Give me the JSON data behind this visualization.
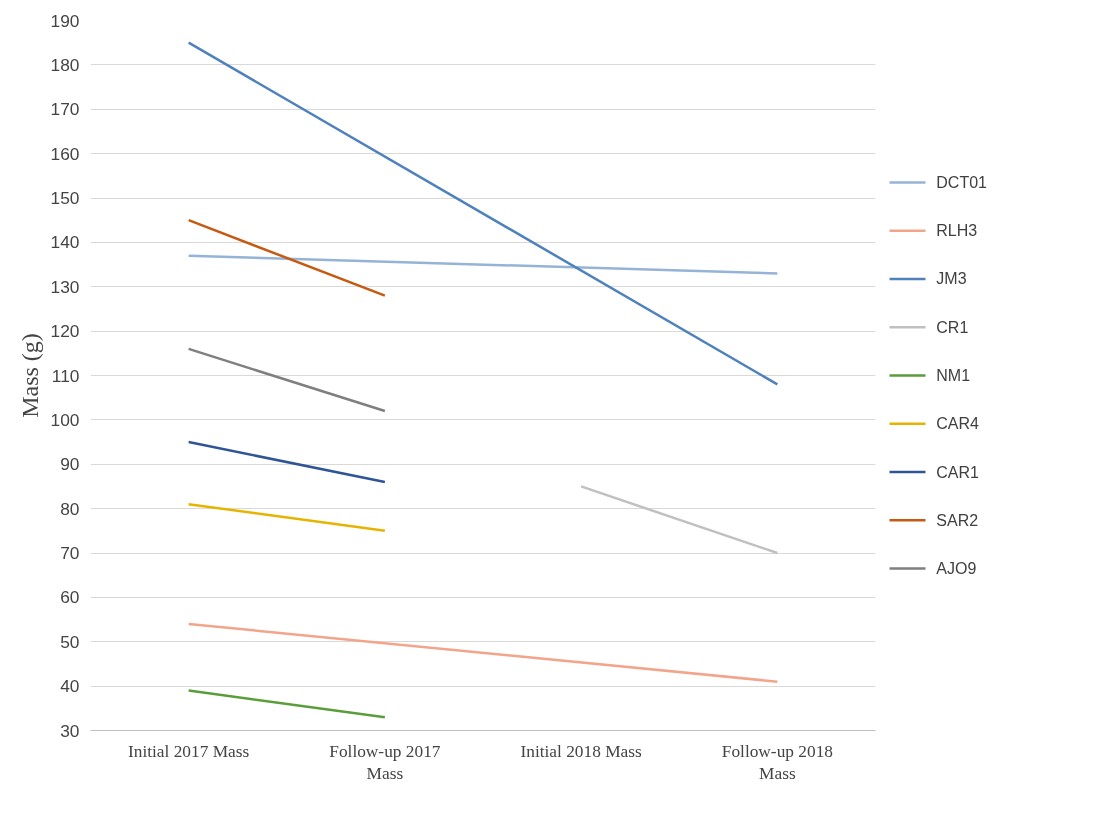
{
  "chart_data": {
    "type": "line",
    "ylabel": "Mass (g)",
    "categories": [
      "Initial 2017 Mass",
      "Follow-up 2017 Mass",
      "Initial 2018 Mass",
      "Follow-up 2018 Mass"
    ],
    "series": [
      {
        "name": "DCT01",
        "color": "#95b3d7",
        "values": [
          137,
          null,
          null,
          133
        ]
      },
      {
        "name": "RLH3",
        "color": "#f2a58a",
        "values": [
          54,
          null,
          null,
          41
        ]
      },
      {
        "name": "JM3",
        "color": "#4f81bd",
        "values": [
          185,
          null,
          null,
          108
        ]
      },
      {
        "name": "CR1",
        "color": "#c0c0c0",
        "values": [
          null,
          null,
          85,
          70
        ]
      },
      {
        "name": "NM1",
        "color": "#5a9e3a",
        "values": [
          39,
          33,
          null,
          null
        ]
      },
      {
        "name": "CAR4",
        "color": "#e6b400",
        "values": [
          81,
          75,
          null,
          null
        ]
      },
      {
        "name": "CAR1",
        "color": "#2f5597",
        "values": [
          95,
          86,
          null,
          null
        ]
      },
      {
        "name": "SAR2",
        "color": "#c55a11",
        "values": [
          145,
          128,
          null,
          null
        ]
      },
      {
        "name": "AJO9",
        "color": "#7f7f7f",
        "values": [
          116,
          102,
          null,
          null
        ]
      }
    ],
    "ylim": [
      30,
      190
    ],
    "yticks": [
      30,
      40,
      50,
      60,
      70,
      80,
      90,
      100,
      110,
      120,
      130,
      140,
      150,
      160,
      170,
      180,
      190
    ],
    "grid": "y",
    "legend": "right",
    "marker": "none",
    "line_style": "solid"
  }
}
